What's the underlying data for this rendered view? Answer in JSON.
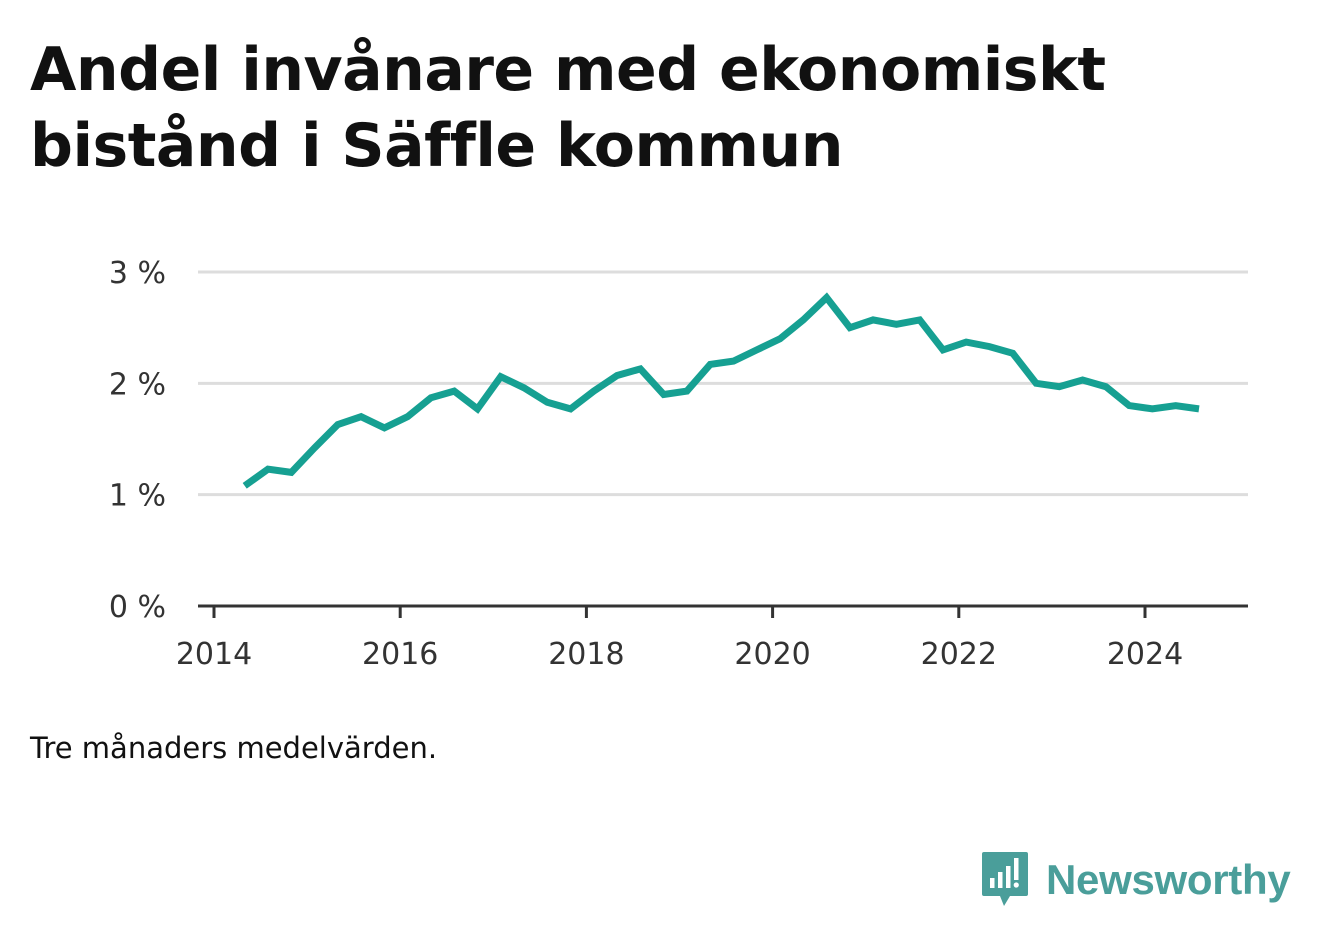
{
  "title": "Andel invånare med ekonomiskt bistånd i Säffle kommun",
  "note": "Tre månaders medelvärden.",
  "brand": {
    "name": "Newsworthy",
    "icon": "bar-chart-speech-bubble-icon",
    "color": "#4a9e9a"
  },
  "colors": {
    "line": "#16a092",
    "grid": "#dddddd",
    "axis": "#333333"
  },
  "chart_data": {
    "type": "line",
    "title": "Andel invånare med ekonomiskt bistånd i Säffle kommun",
    "xlabel": "",
    "ylabel": "",
    "xlim": [
      2014,
      2025.1
    ],
    "ylim": [
      0,
      3
    ],
    "grid": true,
    "legend": "none",
    "x_ticks": [
      2014,
      2016,
      2018,
      2020,
      2022,
      2024
    ],
    "x_tick_labels": [
      "2014",
      "2016",
      "2018",
      "2020",
      "2022",
      "2024"
    ],
    "y_ticks": [
      0,
      1,
      2,
      3
    ],
    "y_tick_labels": [
      "0 %",
      "1 %",
      "2 %",
      "3 %"
    ],
    "series": [
      {
        "x": [
          2014.33,
          2014.58,
          2014.83,
          2015.08,
          2015.33,
          2015.58,
          2015.83,
          2016.08,
          2016.33,
          2016.58,
          2016.83,
          2017.08,
          2017.33,
          2017.58,
          2017.83,
          2018.08,
          2018.33,
          2018.58,
          2018.83,
          2019.08,
          2019.33,
          2019.58,
          2019.83,
          2020.08,
          2020.33,
          2020.58,
          2020.83,
          2021.08,
          2021.33,
          2021.58,
          2021.83,
          2022.08,
          2022.33,
          2022.58,
          2022.83,
          2023.08,
          2023.33,
          2023.58,
          2023.83,
          2024.08,
          2024.33,
          2024.58
        ],
        "values": [
          1.08,
          1.23,
          1.2,
          1.42,
          1.63,
          1.7,
          1.6,
          1.7,
          1.87,
          1.93,
          1.77,
          2.06,
          1.96,
          1.83,
          1.77,
          1.93,
          2.07,
          2.13,
          1.9,
          1.93,
          2.17,
          2.2,
          2.3,
          2.4,
          2.57,
          2.77,
          2.5,
          2.57,
          2.53,
          2.57,
          2.3,
          2.37,
          2.33,
          2.27,
          2.0,
          1.97,
          2.03,
          1.97,
          1.8,
          1.77,
          1.8,
          1.77
        ]
      }
    ]
  }
}
